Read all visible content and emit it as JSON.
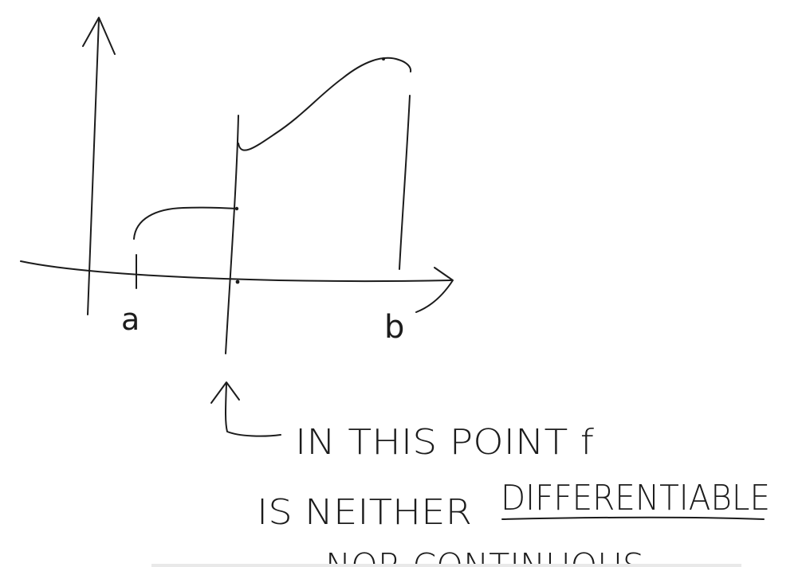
{
  "diagram": {
    "x_tick_left": "a",
    "x_tick_right": "b",
    "annotation_line1": "IN THIS POINT f",
    "annotation_line2_prefix": "IS NEITHER",
    "annotation_line2_emphasis": "DIFFERENTIABLE",
    "annotation_line3": "NOR CONTINUOUS"
  }
}
